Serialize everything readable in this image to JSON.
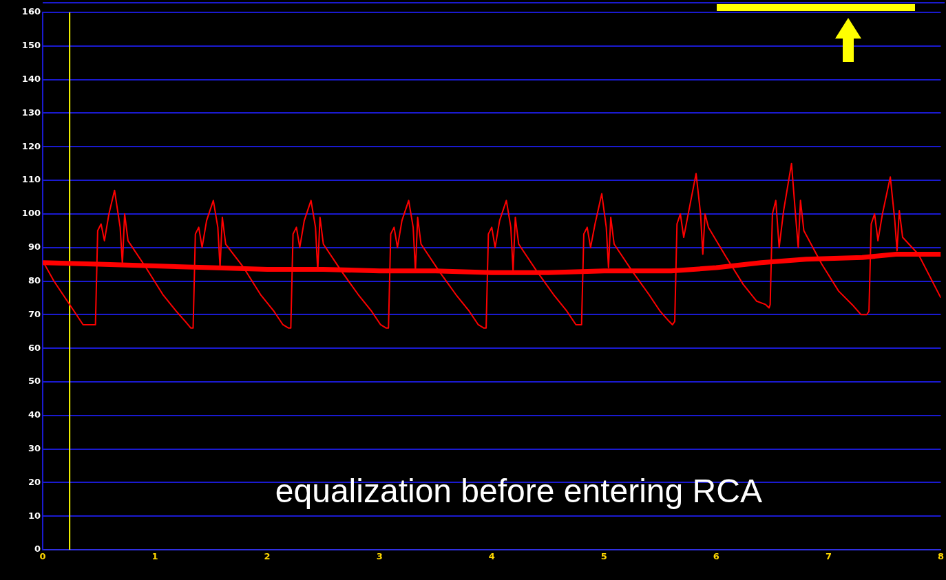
{
  "chart_data": {
    "type": "line",
    "annotations": [
      "equalization before entering RCA"
    ],
    "xlim": [
      0,
      8
    ],
    "xticks": [
      0,
      1,
      2,
      3,
      4,
      5,
      6,
      7,
      8
    ],
    "ylim": [
      0,
      160
    ],
    "yticks": [
      0,
      10,
      20,
      30,
      40,
      50,
      60,
      70,
      80,
      90,
      100,
      110,
      120,
      130,
      140,
      150,
      160
    ],
    "grid": "y",
    "legend": false,
    "marker": "none",
    "line_style": "solid",
    "ref_lines": [
      {
        "axis": "x",
        "value": 0.24,
        "color": "#ffff00"
      }
    ],
    "series": [
      {
        "color": "#ff0000",
        "x": [
          0,
          0.1,
          0.22,
          0.3,
          0.36,
          0.45,
          0.47,
          0.49,
          0.52,
          0.55,
          0.59,
          0.64,
          0.69,
          0.71,
          0.73,
          0.76,
          0.92,
          1.07,
          1.19,
          1.27,
          1.32,
          1.34,
          1.36,
          1.39,
          1.42,
          1.46,
          1.52,
          1.56,
          1.58,
          1.6,
          1.63,
          1.79,
          1.94,
          2.06,
          2.14,
          2.19,
          2.21,
          2.23,
          2.26,
          2.29,
          2.33,
          2.39,
          2.43,
          2.45,
          2.47,
          2.5,
          2.66,
          2.81,
          2.93,
          3.01,
          3.06,
          3.08,
          3.1,
          3.13,
          3.16,
          3.2,
          3.26,
          3.3,
          3.32,
          3.34,
          3.37,
          3.53,
          3.68,
          3.8,
          3.88,
          3.93,
          3.95,
          3.97,
          4.0,
          4.03,
          4.07,
          4.13,
          4.17,
          4.19,
          4.21,
          4.24,
          4.4,
          4.55,
          4.67,
          4.75,
          4.78,
          4.8,
          4.82,
          4.85,
          4.88,
          4.92,
          4.98,
          5.02,
          5.04,
          5.06,
          5.09,
          5.25,
          5.4,
          5.5,
          5.58,
          5.61,
          5.63,
          5.65,
          5.68,
          5.71,
          5.75,
          5.82,
          5.86,
          5.88,
          5.9,
          5.93,
          6.09,
          6.24,
          6.36,
          6.44,
          6.47,
          6.48,
          6.5,
          6.53,
          6.56,
          6.6,
          6.67,
          6.71,
          6.73,
          6.75,
          6.78,
          6.94,
          7.09,
          7.21,
          7.29,
          7.34,
          7.36,
          7.38,
          7.41,
          7.44,
          7.48,
          7.55,
          7.59,
          7.61,
          7.63,
          7.66,
          7.8,
          8.0
        ],
        "values": [
          86,
          80,
          74,
          70,
          67,
          67,
          67,
          95,
          97,
          92,
          100,
          107,
          96,
          85,
          100,
          92,
          84,
          76,
          71,
          68,
          66,
          66,
          94,
          96,
          90,
          98,
          104,
          96,
          84,
          99,
          91,
          84,
          76,
          71,
          67,
          66,
          66,
          94,
          96,
          90,
          98,
          104,
          96,
          83,
          99,
          91,
          83,
          76,
          71,
          67,
          66,
          66,
          94,
          96,
          90,
          98,
          104,
          96,
          83,
          99,
          91,
          83,
          76,
          71,
          67,
          66,
          66,
          94,
          96,
          90,
          98,
          104,
          96,
          83,
          99,
          91,
          83,
          76,
          71,
          67,
          67,
          67,
          94,
          96,
          90,
          97,
          106,
          96,
          84,
          99,
          91,
          83,
          76,
          71,
          68,
          67,
          68,
          97,
          100,
          93,
          100,
          112,
          100,
          88,
          100,
          96,
          87,
          79,
          74,
          73,
          72,
          73,
          100,
          104,
          90,
          101,
          115,
          98,
          90,
          104,
          95,
          85,
          77,
          73,
          70,
          70,
          71,
          97,
          100,
          92,
          100,
          111,
          98,
          89,
          101,
          93,
          88,
          75
        ]
      },
      {
        "color": "#ff0000",
        "x": [
          0,
          0.5,
          1,
          1.5,
          2,
          2.5,
          3,
          3.5,
          4,
          4.5,
          5,
          5.6,
          6,
          6.4,
          6.8,
          7.3,
          7.6,
          8
        ],
        "values": [
          85.5,
          85,
          84.5,
          84,
          83.5,
          83.5,
          83,
          83,
          82.5,
          82.5,
          83,
          83,
          84,
          85.5,
          86.5,
          87,
          88,
          88
        ]
      }
    ]
  }
}
